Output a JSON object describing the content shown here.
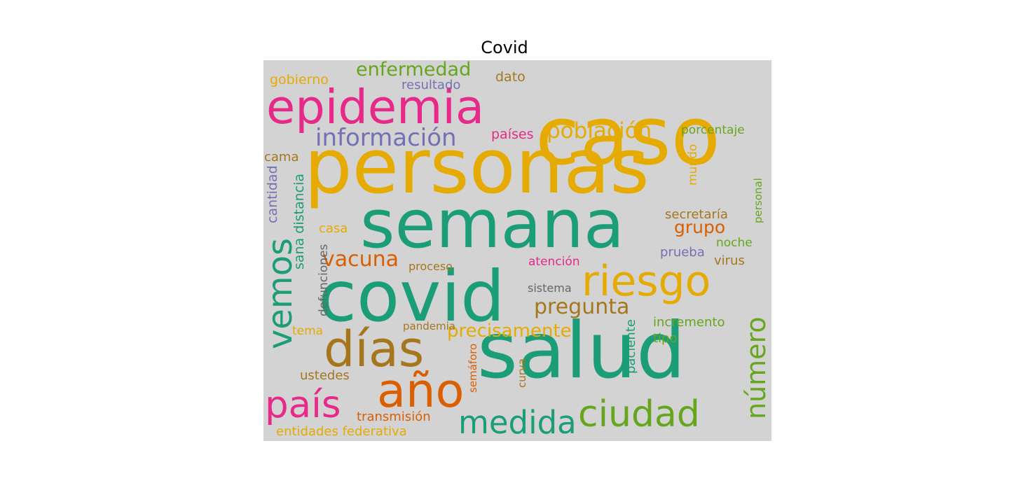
{
  "title": "Covid",
  "background_color": "#d3d3d3",
  "palette": {
    "teal": "#1b9e77",
    "orange": "#d95f02",
    "purple": "#7570b3",
    "pink": "#e7298a",
    "green": "#66a61e",
    "gold": "#e6ab02",
    "brown": "#a6761d",
    "gray": "#666666"
  },
  "words": [
    {
      "text": "caso",
      "color": "#e6ab02",
      "vertical": false
    },
    {
      "text": "personas",
      "color": "#e6ab02",
      "vertical": false
    },
    {
      "text": "epidemia",
      "color": "#e7298a",
      "vertical": false
    },
    {
      "text": "semana",
      "color": "#1b9e77",
      "vertical": false
    },
    {
      "text": "covid",
      "color": "#1b9e77",
      "vertical": false
    },
    {
      "text": "salud",
      "color": "#1b9e77",
      "vertical": false
    },
    {
      "text": "riesgo",
      "color": "#e6ab02",
      "vertical": false
    },
    {
      "text": "vemos",
      "color": "#1b9e77",
      "vertical": true
    },
    {
      "text": "días",
      "color": "#a6761d",
      "vertical": false
    },
    {
      "text": "año",
      "color": "#d95f02",
      "vertical": false
    },
    {
      "text": "país",
      "color": "#e7298a",
      "vertical": false
    },
    {
      "text": "ciudad",
      "color": "#66a61e",
      "vertical": false
    },
    {
      "text": "medida",
      "color": "#1b9e77",
      "vertical": false
    },
    {
      "text": "número",
      "color": "#66a61e",
      "vertical": true
    },
    {
      "text": "información",
      "color": "#7570b3",
      "vertical": false
    },
    {
      "text": "población",
      "color": "#e6ab02",
      "vertical": false
    },
    {
      "text": "enfermedad",
      "color": "#66a61e",
      "vertical": false
    },
    {
      "text": "pregunta",
      "color": "#a6761d",
      "vertical": false
    },
    {
      "text": "vacuna",
      "color": "#d95f02",
      "vertical": false
    },
    {
      "text": "precisamente",
      "color": "#e6ab02",
      "vertical": false
    },
    {
      "text": "grupo",
      "color": "#d95f02",
      "vertical": false
    },
    {
      "text": "gobierno",
      "color": "#e6ab02",
      "vertical": false
    },
    {
      "text": "resultado",
      "color": "#7570b3",
      "vertical": false
    },
    {
      "text": "dato",
      "color": "#a6761d",
      "vertical": false
    },
    {
      "text": "países",
      "color": "#e7298a",
      "vertical": false
    },
    {
      "text": "porcentaje",
      "color": "#66a61e",
      "vertical": false
    },
    {
      "text": "cama",
      "color": "#a6761d",
      "vertical": false
    },
    {
      "text": "mundo",
      "color": "#e6ab02",
      "vertical": true
    },
    {
      "text": "cantidad",
      "color": "#7570b3",
      "vertical": true
    },
    {
      "text": "sana distancia",
      "color": "#1b9e77",
      "vertical": true
    },
    {
      "text": "defunciones",
      "color": "#666666",
      "vertical": true
    },
    {
      "text": "secretaría",
      "color": "#a6761d",
      "vertical": false
    },
    {
      "text": "personal",
      "color": "#66a61e",
      "vertical": true
    },
    {
      "text": "casa",
      "color": "#e6ab02",
      "vertical": false
    },
    {
      "text": "noche",
      "color": "#66a61e",
      "vertical": false
    },
    {
      "text": "prueba",
      "color": "#7570b3",
      "vertical": false
    },
    {
      "text": "proceso",
      "color": "#a6761d",
      "vertical": false
    },
    {
      "text": "atención",
      "color": "#e7298a",
      "vertical": false
    },
    {
      "text": "virus",
      "color": "#a6761d",
      "vertical": false
    },
    {
      "text": "sistema",
      "color": "#666666",
      "vertical": false
    },
    {
      "text": "tema",
      "color": "#e6ab02",
      "vertical": false
    },
    {
      "text": "pandemia",
      "color": "#a6761d",
      "vertical": false
    },
    {
      "text": "incremento",
      "color": "#66a61e",
      "vertical": false
    },
    {
      "text": "tipo",
      "color": "#66a61e",
      "vertical": false
    },
    {
      "text": "paciente",
      "color": "#1b9e77",
      "vertical": true
    },
    {
      "text": "semáforo",
      "color": "#d95f02",
      "vertical": true
    },
    {
      "text": "curva",
      "color": "#a6761d",
      "vertical": true
    },
    {
      "text": "ustedes",
      "color": "#a6761d",
      "vertical": false
    },
    {
      "text": "transmisión",
      "color": "#d95f02",
      "vertical": false
    },
    {
      "text": "entidades federativa",
      "color": "#e6ab02",
      "vertical": false
    }
  ]
}
